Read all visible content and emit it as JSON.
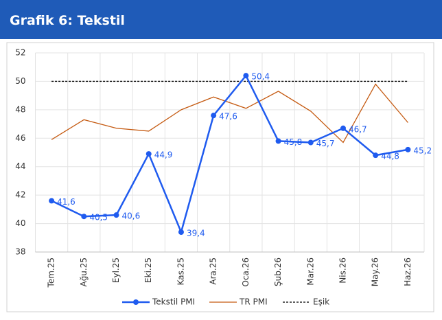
{
  "chart_data": {
    "type": "line",
    "title": "Grafik 6: Tekstil",
    "categories": [
      "Tem.25",
      "Ağu.25",
      "Eyl.25",
      "Eki.25",
      "Kas.25",
      "Ara.25",
      "Oca.26",
      "Şub.26",
      "Mar.26",
      "Nis.26",
      "May.26",
      "Haz.26"
    ],
    "series": [
      {
        "name": "Tekstil PMI",
        "color": "#1f5bef",
        "markers": true,
        "values": [
          41.6,
          40.5,
          40.6,
          44.9,
          39.4,
          47.6,
          50.4,
          45.8,
          45.7,
          46.7,
          44.8,
          45.2
        ],
        "value_labels": [
          "41,6",
          "40,5",
          "40,6",
          "44,9",
          "39,4",
          "47,6",
          "50,4",
          "45,8",
          "45,7",
          "46,7",
          "44,8",
          "45,2"
        ]
      },
      {
        "name": "TR PMI",
        "color": "#c55a11",
        "values": [
          45.9,
          47.3,
          46.7,
          46.5,
          48.0,
          48.9,
          48.1,
          49.3,
          47.9,
          45.7,
          49.8,
          47.1
        ]
      },
      {
        "name": "Eşik",
        "color": "#000000",
        "dash": true,
        "values": [
          50,
          50,
          50,
          50,
          50,
          50,
          50,
          50,
          50,
          50,
          50,
          50
        ]
      }
    ],
    "ylim": [
      38,
      52
    ],
    "yticks": [
      38,
      40,
      42,
      44,
      46,
      48,
      50,
      52
    ],
    "grid": true,
    "legend": "bottom"
  }
}
